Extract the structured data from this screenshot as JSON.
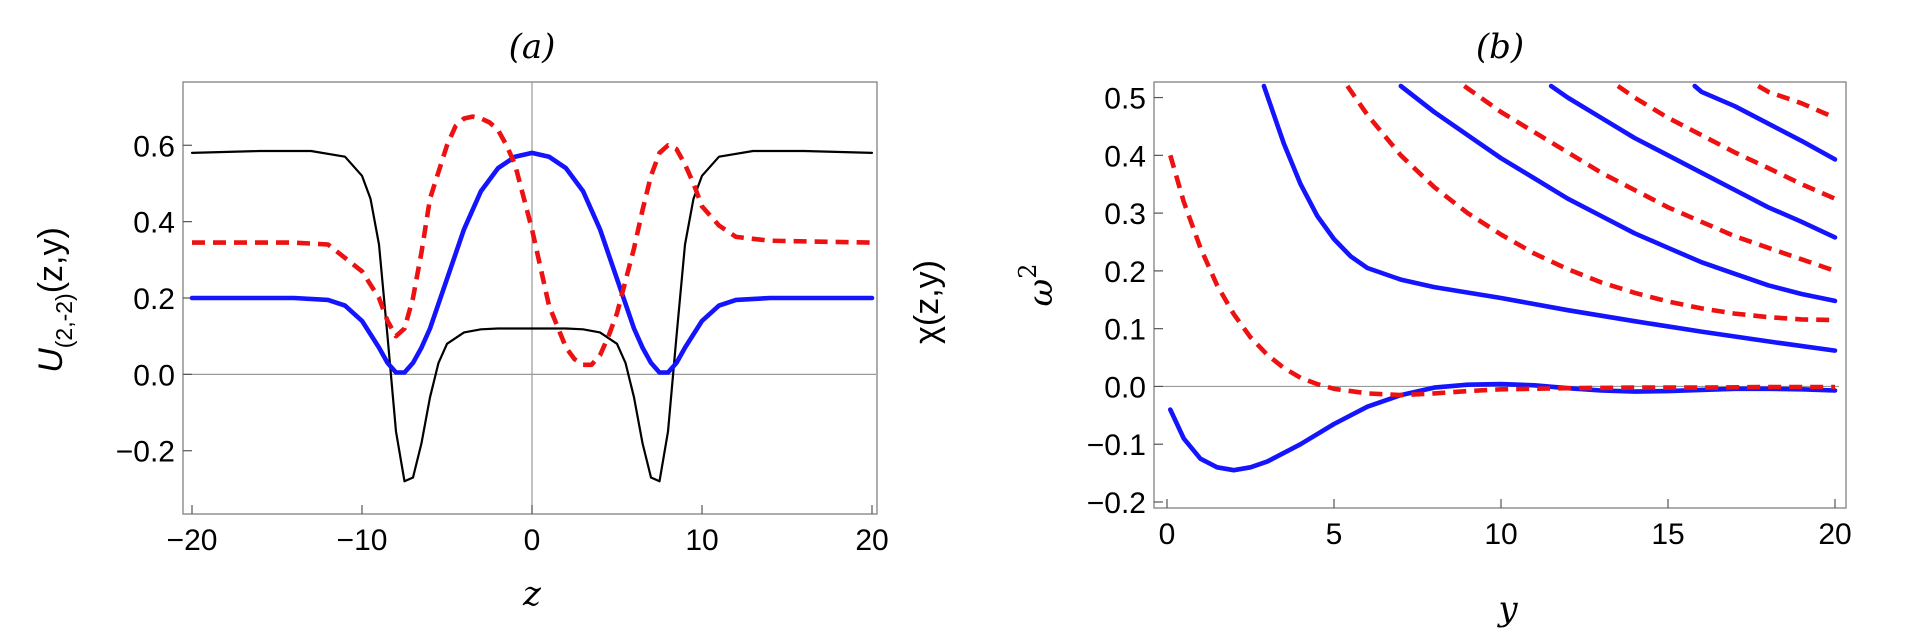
{
  "chart_data": [
    {
      "type": "line",
      "panel_label": "(a)",
      "xlabel": "z",
      "ylabel_left_main": "U",
      "ylabel_left_sub": "(2,-2)",
      "ylabel_left_tail": "(z,y)",
      "ylabel_right": "χ(z,y)",
      "xlim": [
        -20,
        20
      ],
      "ylim": [
        -0.35,
        0.75
      ],
      "x_ticks": [
        -20,
        -10,
        0,
        10,
        20
      ],
      "x_tick_labels": [
        "−20",
        "−10",
        "0",
        "10",
        "20"
      ],
      "y_ticks": [
        -0.2,
        0.0,
        0.2,
        0.4,
        0.6
      ],
      "y_tick_labels": [
        "−0.2",
        "0.0",
        "0.2",
        "0.4",
        "0.6"
      ],
      "series": [
        {
          "name": "black",
          "color": "#000000",
          "style": "solid",
          "x": [
            -20,
            -16,
            -13,
            -11,
            -10,
            -9.5,
            -9,
            -8.5,
            -8,
            -7.5,
            -7,
            -6.5,
            -6,
            -5.5,
            -5,
            -4,
            -3,
            -2,
            -1,
            0,
            1,
            2,
            3,
            4,
            5,
            5.5,
            6,
            6.5,
            7,
            7.5,
            8,
            8.5,
            9,
            9.5,
            10,
            11,
            13,
            16,
            20
          ],
          "y": [
            0.58,
            0.585,
            0.585,
            0.57,
            0.52,
            0.46,
            0.34,
            0.1,
            -0.15,
            -0.28,
            -0.27,
            -0.18,
            -0.06,
            0.03,
            0.08,
            0.11,
            0.118,
            0.12,
            0.12,
            0.12,
            0.12,
            0.12,
            0.118,
            0.11,
            0.08,
            0.03,
            -0.06,
            -0.18,
            -0.27,
            -0.28,
            -0.15,
            0.1,
            0.34,
            0.46,
            0.52,
            0.57,
            0.585,
            0.585,
            0.58
          ]
        },
        {
          "name": "blue",
          "color": "#1414ff",
          "style": "solid",
          "x": [
            -20,
            -14,
            -12,
            -11,
            -10,
            -9,
            -8.5,
            -8,
            -7.5,
            -7,
            -6.5,
            -6,
            -5,
            -4,
            -3,
            -2,
            -1,
            0,
            1,
            2,
            3,
            4,
            5,
            6,
            6.5,
            7,
            7.5,
            8,
            8.5,
            9,
            10,
            11,
            12,
            14,
            20
          ],
          "y": [
            0.2,
            0.2,
            0.195,
            0.18,
            0.14,
            0.07,
            0.03,
            0.005,
            0.005,
            0.03,
            0.07,
            0.12,
            0.25,
            0.38,
            0.48,
            0.54,
            0.57,
            0.58,
            0.57,
            0.54,
            0.48,
            0.38,
            0.25,
            0.12,
            0.07,
            0.03,
            0.005,
            0.005,
            0.03,
            0.07,
            0.14,
            0.18,
            0.195,
            0.2,
            0.2
          ]
        },
        {
          "name": "red",
          "color": "#ee1111",
          "style": "dashed",
          "x": [
            -20,
            -14,
            -12,
            -10,
            -9,
            -8.5,
            -8,
            -7.5,
            -7,
            -6.5,
            -6,
            -5,
            -4.5,
            -4,
            -3.5,
            -3,
            -2.5,
            -2,
            -1.5,
            -1,
            0,
            1,
            2,
            2.5,
            3,
            3.5,
            4,
            4.5,
            5,
            6,
            6.5,
            7,
            7.5,
            8,
            8.5,
            9,
            9.5,
            10,
            11,
            12,
            14,
            20
          ],
          "y": [
            0.345,
            0.345,
            0.34,
            0.27,
            0.2,
            0.14,
            0.1,
            0.12,
            0.2,
            0.32,
            0.46,
            0.6,
            0.65,
            0.67,
            0.675,
            0.67,
            0.66,
            0.64,
            0.6,
            0.55,
            0.38,
            0.18,
            0.07,
            0.04,
            0.025,
            0.025,
            0.05,
            0.1,
            0.16,
            0.33,
            0.43,
            0.52,
            0.58,
            0.6,
            0.59,
            0.55,
            0.5,
            0.44,
            0.39,
            0.36,
            0.35,
            0.345
          ]
        }
      ]
    },
    {
      "type": "line",
      "panel_label": "(b)",
      "xlabel": "y",
      "ylabel": "ω",
      "ylabel_sup": "2",
      "xlim": [
        0,
        20
      ],
      "ylim": [
        -0.2,
        0.52
      ],
      "x_ticks": [
        0,
        5,
        10,
        15,
        20
      ],
      "x_tick_labels": [
        "0",
        "5",
        "10",
        "15",
        "20"
      ],
      "y_ticks": [
        -0.2,
        -0.1,
        0.0,
        0.1,
        0.2,
        0.3,
        0.4,
        0.5
      ],
      "y_tick_labels": [
        "−0.2",
        "−0.1",
        "0.0",
        "0.1",
        "0.2",
        "0.3",
        "0.4",
        "0.5"
      ],
      "series": [
        {
          "name": "blue-1",
          "color": "#1414ff",
          "style": "solid",
          "x": [
            0.1,
            0.5,
            1,
            1.5,
            2,
            2.5,
            3,
            4,
            5,
            6,
            7,
            8,
            9,
            10,
            11,
            12,
            13,
            14,
            15,
            16,
            17,
            18,
            19,
            20
          ],
          "y": [
            -0.04,
            -0.09,
            -0.125,
            -0.14,
            -0.145,
            -0.14,
            -0.13,
            -0.1,
            -0.065,
            -0.035,
            -0.015,
            -0.002,
            0.003,
            0.004,
            0.002,
            -0.003,
            -0.007,
            -0.009,
            -0.008,
            -0.006,
            -0.004,
            -0.004,
            -0.005,
            -0.007
          ]
        },
        {
          "name": "red-1",
          "color": "#ee1111",
          "style": "dashed",
          "x": [
            0.1,
            0.5,
            1,
            1.5,
            2,
            2.5,
            3,
            3.5,
            4,
            4.5,
            5,
            6,
            7,
            8,
            9,
            10,
            12,
            14,
            16,
            18,
            20
          ],
          "y": [
            0.4,
            0.32,
            0.24,
            0.175,
            0.125,
            0.085,
            0.055,
            0.032,
            0.015,
            0.004,
            -0.004,
            -0.012,
            -0.015,
            -0.012,
            -0.008,
            -0.005,
            -0.003,
            -0.002,
            -0.002,
            -0.001,
            -0.001
          ]
        },
        {
          "name": "blue-2",
          "color": "#1414ff",
          "style": "solid",
          "x": [
            2.9,
            3.5,
            4,
            4.5,
            5,
            5.5,
            6,
            7,
            8,
            10,
            12,
            14,
            16,
            18,
            20
          ],
          "y": [
            0.52,
            0.42,
            0.35,
            0.295,
            0.255,
            0.225,
            0.205,
            0.185,
            0.172,
            0.153,
            0.132,
            0.113,
            0.095,
            0.078,
            0.062
          ]
        },
        {
          "name": "red-2",
          "color": "#ee1111",
          "style": "dashed",
          "x": [
            5.4,
            6,
            7,
            8,
            9,
            10,
            11,
            12,
            13,
            14,
            15,
            16,
            17,
            18,
            19,
            20
          ],
          "y": [
            0.52,
            0.47,
            0.4,
            0.345,
            0.3,
            0.263,
            0.23,
            0.203,
            0.18,
            0.162,
            0.147,
            0.135,
            0.126,
            0.12,
            0.116,
            0.115
          ]
        },
        {
          "name": "blue-3",
          "color": "#1414ff",
          "style": "solid",
          "x": [
            7.0,
            8,
            9,
            10,
            11,
            12,
            13,
            14,
            15,
            16,
            17,
            18,
            19,
            20
          ],
          "y": [
            0.52,
            0.475,
            0.435,
            0.395,
            0.36,
            0.325,
            0.295,
            0.265,
            0.24,
            0.215,
            0.195,
            0.175,
            0.16,
            0.148
          ]
        },
        {
          "name": "red-3",
          "color": "#ee1111",
          "style": "dashed",
          "x": [
            8.9,
            10,
            11,
            12,
            13,
            14,
            15,
            16,
            17,
            18,
            19,
            20
          ],
          "y": [
            0.52,
            0.475,
            0.44,
            0.405,
            0.37,
            0.34,
            0.31,
            0.285,
            0.26,
            0.24,
            0.22,
            0.2
          ]
        },
        {
          "name": "blue-4",
          "color": "#1414ff",
          "style": "solid",
          "x": [
            11.5,
            12,
            13,
            14,
            15,
            16,
            17,
            18,
            19,
            20
          ],
          "y": [
            0.52,
            0.5,
            0.465,
            0.43,
            0.4,
            0.37,
            0.34,
            0.31,
            0.285,
            0.258
          ]
        },
        {
          "name": "red-4",
          "color": "#ee1111",
          "style": "dashed",
          "x": [
            13.5,
            14,
            15,
            16,
            17,
            18,
            19,
            20
          ],
          "y": [
            0.52,
            0.5,
            0.465,
            0.435,
            0.405,
            0.378,
            0.35,
            0.325
          ]
        },
        {
          "name": "blue-5",
          "color": "#1414ff",
          "style": "solid",
          "x": [
            15.8,
            16,
            17,
            18,
            19,
            20
          ],
          "y": [
            0.52,
            0.51,
            0.485,
            0.455,
            0.425,
            0.393
          ]
        },
        {
          "name": "red-5",
          "color": "#ee1111",
          "style": "dashed",
          "x": [
            17.7,
            18,
            19,
            20
          ],
          "y": [
            0.52,
            0.51,
            0.49,
            0.465
          ]
        }
      ]
    }
  ]
}
